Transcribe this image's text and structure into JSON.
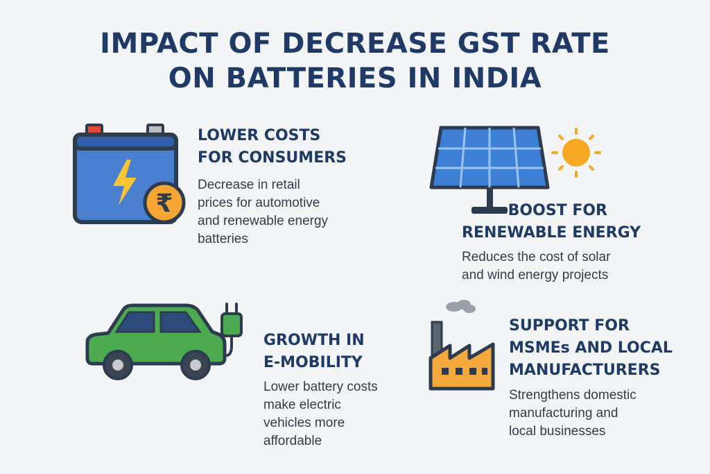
{
  "title": {
    "line1": "IMPACT OF DECREASE GST RATE",
    "line2": "ON BATTERIES IN INDIA"
  },
  "sections": {
    "consumers": {
      "heading": [
        "LOWER COSTS",
        "FOR CONSUMERS"
      ],
      "description": [
        "Decrease in retail",
        "prices for automotive",
        "and renewable energy",
        "batteries"
      ],
      "icon": "battery-rupee-icon"
    },
    "renewable": {
      "heading": [
        "BOOST FOR",
        "RENEWABLE ENERGY"
      ],
      "description": [
        "Reduces the cost of solar",
        "and wind energy projects"
      ],
      "icon": "solar-panel-sun-icon"
    },
    "emobility": {
      "heading": [
        "GROWTH IN",
        "E-MOBILITY"
      ],
      "description": [
        "Lower battery costs",
        "make electric",
        "vehicles more",
        "affordable"
      ],
      "icon": "electric-car-plug-icon"
    },
    "msme": {
      "heading": [
        "SUPPORT FOR",
        "MSMEs AND LOCAL",
        "MANUFACTURERS"
      ],
      "description": [
        "Strengthens domestic",
        "manufacturing and",
        "local businesses"
      ],
      "icon": "factory-icon"
    }
  },
  "colors": {
    "heading": "#1f3a66",
    "text": "#333b46",
    "outline": "#2d3b4f",
    "battery_blue": "#4a7fd0",
    "coin_orange": "#f4a533",
    "car_green": "#4caa50",
    "solar_blue": "#3d7fd4",
    "sun_yellow": "#f7a823",
    "factory_orange": "#f3a93c"
  },
  "rupee_symbol": "₹"
}
